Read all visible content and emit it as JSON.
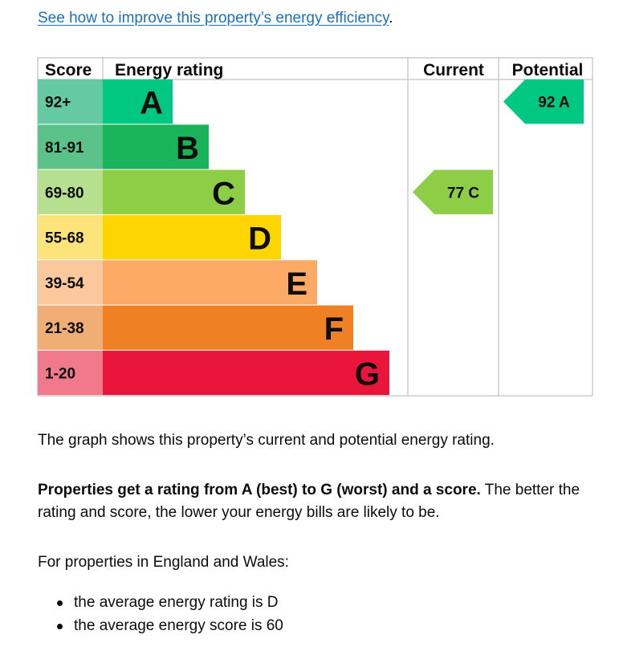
{
  "link": {
    "text": "See how to improve this property’s energy efficiency",
    "trail": "."
  },
  "chart_data": {
    "type": "bar",
    "headers": {
      "score": "Score",
      "rating": "Energy rating",
      "current": "Current",
      "potential": "Potential"
    },
    "bands": [
      {
        "letter": "A",
        "range": "92+",
        "color": "#00c781",
        "score_color": "#66c9a6"
      },
      {
        "letter": "B",
        "range": "81-91",
        "color": "#19b459",
        "score_color": "#5bc28a"
      },
      {
        "letter": "C",
        "range": "69-80",
        "color": "#8dce46",
        "score_color": "#b6df8f"
      },
      {
        "letter": "D",
        "range": "55-68",
        "color": "#ffd500",
        "score_color": "#fde47a"
      },
      {
        "letter": "E",
        "range": "39-54",
        "color": "#fcaa65",
        "score_color": "#fbc89d"
      },
      {
        "letter": "F",
        "range": "21-38",
        "color": "#ef8023",
        "score_color": "#f0ae74"
      },
      {
        "letter": "G",
        "range": "1-20",
        "color": "#e9153b",
        "score_color": "#f07a8c"
      }
    ],
    "current": {
      "score": 77,
      "letter": "C",
      "label": "77 C",
      "color": "#8dce46"
    },
    "potential": {
      "score": 92,
      "letter": "A",
      "label": "92 A",
      "color": "#00c781"
    }
  },
  "text": {
    "graph_desc": "The graph shows this property’s current and potential energy rating.",
    "rating_bold": "Properties get a rating from A (best) to G (worst) and a score.",
    "rating_rest": " The better the rating and score, the lower your energy bills are likely to be.",
    "england": "For properties in England and Wales:",
    "bullets": [
      "the average energy rating is D",
      "the average energy score is 60"
    ]
  }
}
